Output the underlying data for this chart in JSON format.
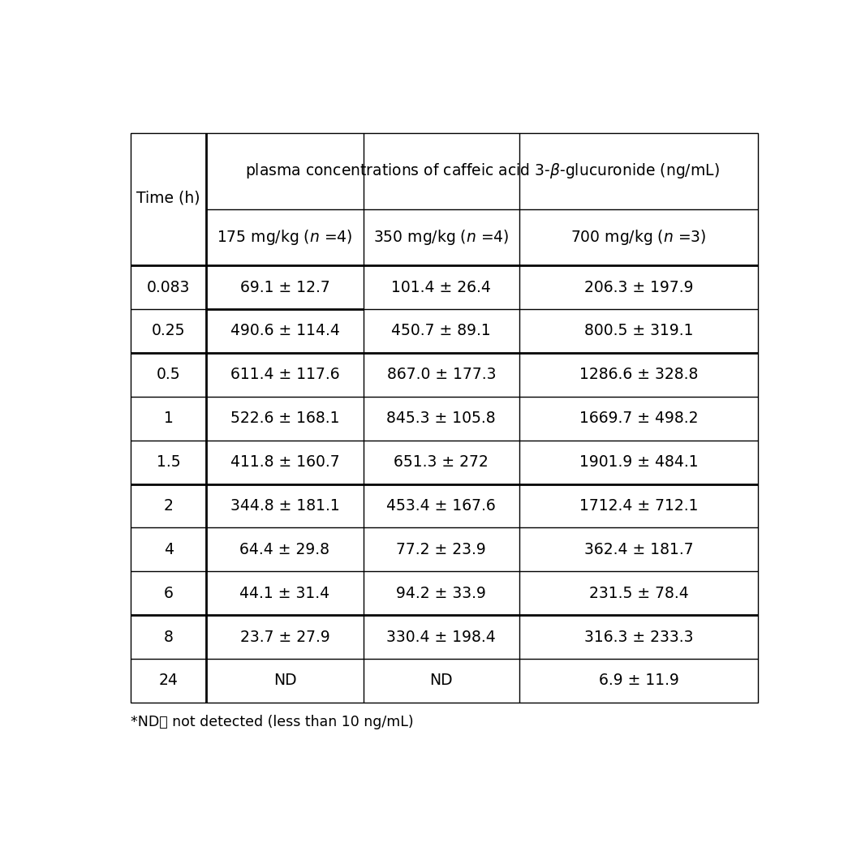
{
  "header_main": "plasma concentrations of caffeic acid 3-β-glucuronide (ng/mL)",
  "col_headers": [
    "175 mg/kg ( n =4)",
    "350 mg/kg ( n =4)",
    "700 mg/kg ( n =3)"
  ],
  "row_label": "Time (h)",
  "time_points": [
    "0.083",
    "0.25",
    "0.5",
    "1",
    "1.5",
    "2",
    "4",
    "6",
    "8",
    "24"
  ],
  "data": [
    [
      "69.1 ± 12.7",
      "101.4 ± 26.4",
      "206.3 ± 197.9"
    ],
    [
      "490.6 ± 114.4",
      "450.7 ± 89.1",
      "800.5 ± 319.1"
    ],
    [
      "611.4 ± 117.6",
      "867.0 ± 177.3",
      "1286.6 ± 328.8"
    ],
    [
      "522.6 ± 168.1",
      "845.3 ± 105.8",
      "1669.7 ± 498.2"
    ],
    [
      "411.8 ± 160.7",
      "651.3 ± 272",
      "1901.9 ± 484.1"
    ],
    [
      "344.8 ± 181.1",
      "453.4 ± 167.6",
      "1712.4 ± 712.1"
    ],
    [
      "64.4 ± 29.8",
      "77.2 ± 23.9",
      "362.4 ± 181.7"
    ],
    [
      "44.1 ± 31.4",
      "94.2 ± 33.9",
      "231.5 ± 78.4"
    ],
    [
      "23.7 ± 27.9",
      "330.4 ± 198.4",
      "316.3 ± 233.3"
    ],
    [
      "ND",
      "ND",
      "6.9 ± 11.9"
    ]
  ],
  "footnote": "*ND： not detected (less than 10 ng/mL)",
  "bg_color": "#ffffff",
  "text_color": "#000000",
  "font_size": 13.5,
  "header_font_size": 13.5,
  "footnote_font_size": 12.5,
  "thick_lw": 2.0,
  "thin_lw": 1.0
}
